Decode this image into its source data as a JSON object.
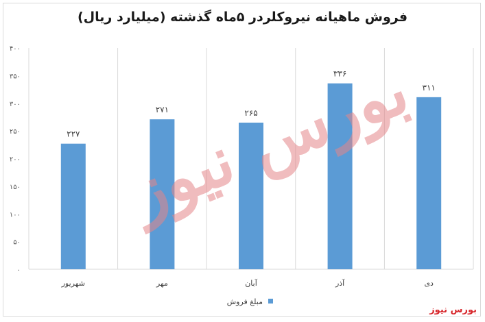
{
  "chart_data": {
    "type": "bar",
    "title": "فروش ماهیانه نیروکلردر ۵ماه گذشته (میلیارد ریال)",
    "categories": [
      "شهریور",
      "مهر",
      "آبان",
      "آذر",
      "دی"
    ],
    "series": [
      {
        "name": "مبلغ فروش",
        "values": [
          227,
          271,
          265,
          336,
          311
        ],
        "color": "#5b9bd5"
      }
    ],
    "data_labels": [
      "۲۲۷",
      "۲۷۱",
      "۲۶۵",
      "۳۳۶",
      "۳۱۱"
    ],
    "ylim": [
      0,
      400
    ],
    "yticks": [
      0,
      50,
      100,
      150,
      200,
      250,
      300,
      350,
      400
    ],
    "ytick_labels": [
      "۰",
      "۵۰",
      "۱۰۰",
      "۱۵۰",
      "۲۰۰",
      "۲۵۰",
      "۳۰۰",
      "۳۵۰",
      "۴۰۰"
    ],
    "grid": "vertical-category-lines",
    "legend_position": "bottom"
  },
  "watermark": {
    "text": "بورس نیوز",
    "color": "#e4868a"
  },
  "brand": {
    "text": "بورس نیوز",
    "color": "#d7262b"
  }
}
